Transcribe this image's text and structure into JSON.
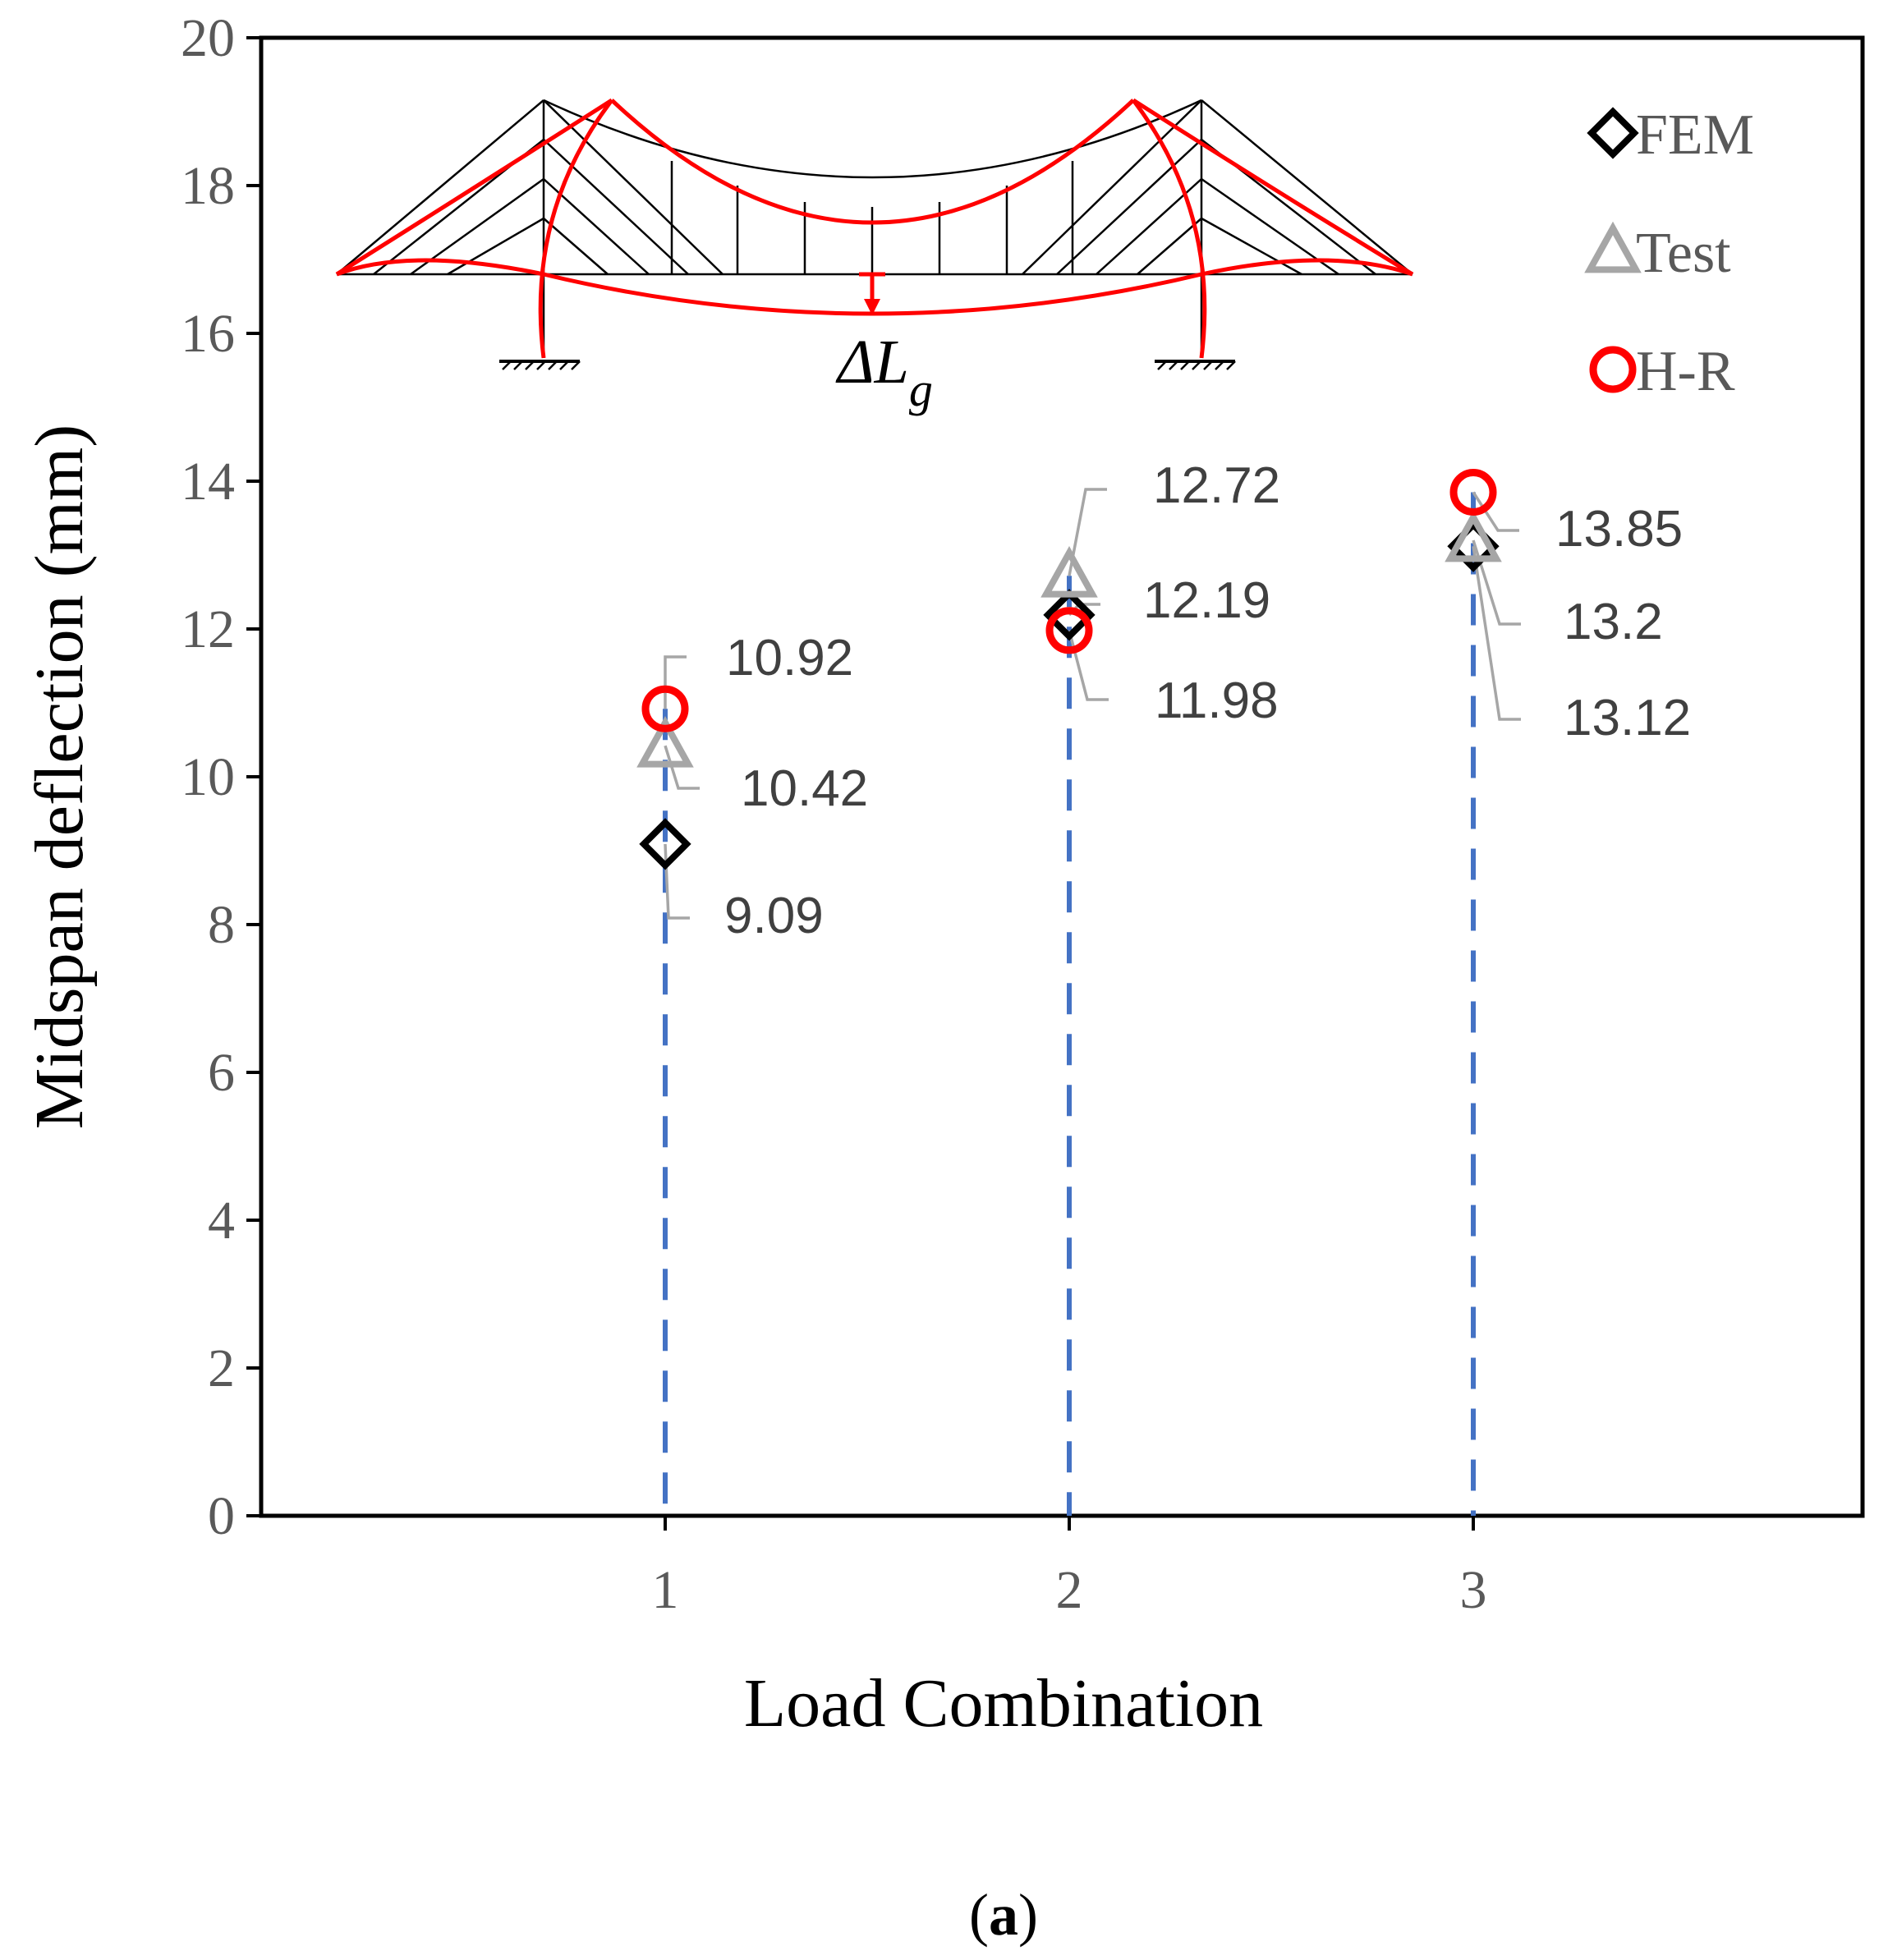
{
  "chart_data": {
    "type": "scatter",
    "xlabel": "Load Combination",
    "ylabel": "Midspan deflection (mm)",
    "ylim": [
      0,
      20
    ],
    "yticks": [
      0,
      2,
      4,
      6,
      8,
      10,
      12,
      14,
      16,
      18,
      20
    ],
    "categories": [
      "1",
      "2",
      "3"
    ],
    "grid": false,
    "legend_position": "top-right",
    "series": [
      {
        "name": "FEM",
        "marker": "diamond",
        "color": "#000000",
        "values": [
          9.09,
          12.19,
          13.12
        ],
        "labels": [
          "9.09",
          "12.19",
          "13.12"
        ]
      },
      {
        "name": "Test",
        "marker": "triangle",
        "color": "#a6a6a6",
        "values": [
          10.42,
          12.72,
          13.2
        ],
        "labels": [
          "10.42",
          "12.72",
          "13.2"
        ]
      },
      {
        "name": "H-R",
        "marker": "circle",
        "color": "#ff0000",
        "values": [
          10.92,
          11.98,
          13.85
        ],
        "labels": [
          "10.92",
          "11.98",
          "13.85"
        ]
      }
    ],
    "inset": {
      "description": "suspension bridge deformation diagram",
      "label_symbol": "ΔL",
      "label_subscript": "g"
    },
    "caption": {
      "open": "(",
      "letter": "a",
      "close": ")"
    }
  },
  "colors": {
    "dropline": "#4472c4",
    "leader": "#a6a6a6",
    "axis": "#000000",
    "deformed": "#ff0000",
    "structure": "#000000"
  }
}
